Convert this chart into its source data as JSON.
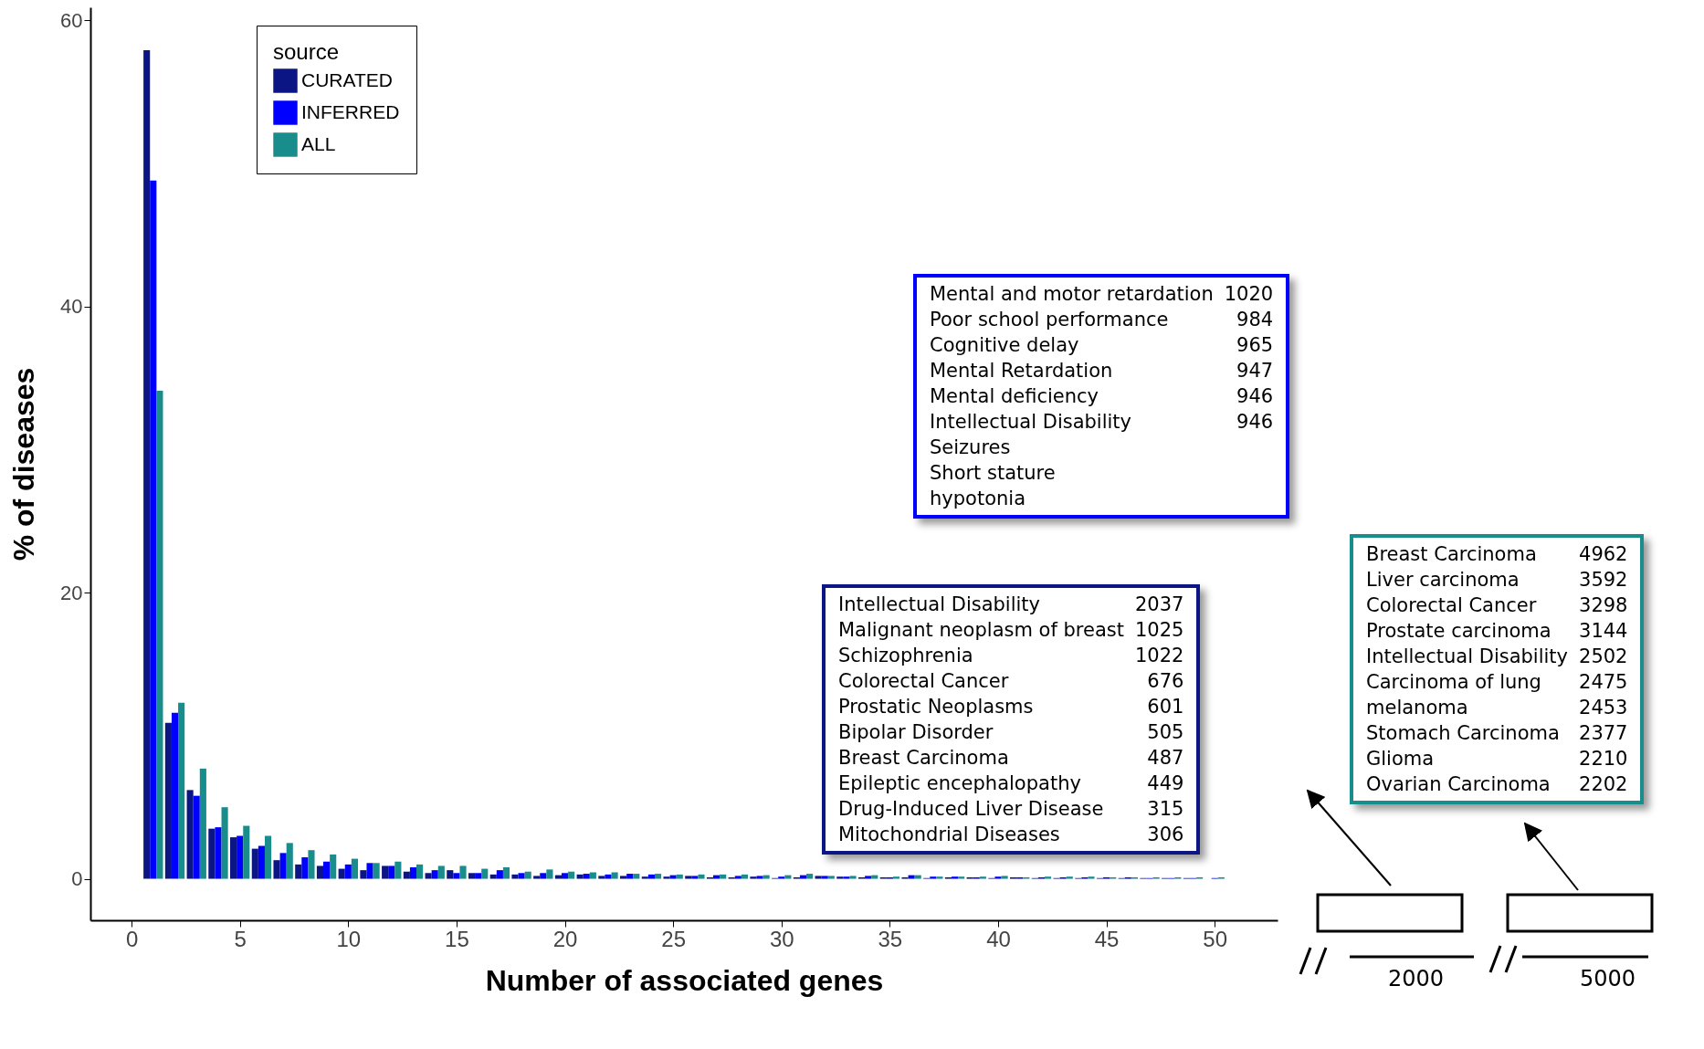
{
  "chart_data": {
    "type": "bar",
    "xlabel": "Number of associated genes",
    "ylabel": "% of diseases",
    "legend_title": "source",
    "legend": "top left",
    "grid": false,
    "x": [
      1,
      2,
      3,
      4,
      5,
      6,
      7,
      8,
      9,
      10,
      11,
      12,
      13,
      14,
      15,
      16,
      17,
      18,
      19,
      20,
      21,
      22,
      23,
      24,
      25,
      26,
      27,
      28,
      29,
      30,
      31,
      32,
      33,
      34,
      35,
      36,
      37,
      38,
      39,
      40,
      41,
      42,
      43,
      44,
      45,
      46,
      47,
      48,
      49,
      50
    ],
    "xlim": [
      -1.9,
      52.9
    ],
    "xticks": [
      0,
      5,
      10,
      15,
      20,
      25,
      30,
      35,
      40,
      45,
      50
    ],
    "ylim": [
      -2.9,
      60.9
    ],
    "yticks": [
      0,
      20,
      40,
      60
    ],
    "series": [
      {
        "name": "CURATED",
        "color": "#0c1584",
        "values": [
          57.9,
          10.9,
          6.2,
          3.5,
          2.9,
          2.1,
          1.3,
          1.0,
          0.9,
          0.7,
          0.6,
          0.9,
          0.5,
          0.4,
          0.6,
          0.4,
          0.3,
          0.3,
          0.2,
          0.25,
          0.3,
          0.2,
          0.2,
          0.15,
          0.15,
          0.2,
          0.1,
          0.1,
          0.15,
          0.05,
          0.1,
          0.2,
          0.15,
          0.1,
          0.1,
          0.1,
          0.05,
          0.1,
          0.1,
          0.05,
          0.1,
          0.05,
          0.05,
          0.05,
          0.05,
          0.05,
          0.05,
          0.05,
          0.05,
          null
        ]
      },
      {
        "name": "INFERRED",
        "color": "#0000ff",
        "values": [
          48.8,
          11.6,
          5.8,
          3.6,
          3.0,
          2.3,
          1.8,
          1.5,
          1.2,
          1.0,
          1.1,
          0.9,
          0.8,
          0.6,
          0.4,
          0.4,
          0.6,
          0.4,
          0.4,
          0.4,
          0.35,
          0.3,
          0.35,
          0.3,
          0.25,
          0.2,
          0.25,
          0.2,
          0.2,
          0.15,
          0.25,
          0.2,
          0.15,
          0.2,
          0.1,
          0.25,
          0.15,
          0.15,
          0.1,
          0.15,
          0.1,
          0.1,
          0.1,
          0.1,
          0.1,
          0.1,
          0.05,
          0.05,
          0.05,
          0.05
        ]
      },
      {
        "name": "ALL",
        "color": "#198c8c",
        "values": [
          34.1,
          12.3,
          7.7,
          5.0,
          3.7,
          3.0,
          2.5,
          2.0,
          1.7,
          1.4,
          1.1,
          1.2,
          1.0,
          0.9,
          0.9,
          0.7,
          0.8,
          0.5,
          0.65,
          0.5,
          0.45,
          0.45,
          0.35,
          0.35,
          0.3,
          0.3,
          0.3,
          0.3,
          0.25,
          0.25,
          0.35,
          0.2,
          0.2,
          0.25,
          0.15,
          0.25,
          0.15,
          0.15,
          0.15,
          0.2,
          0.1,
          0.15,
          0.15,
          0.15,
          0.1,
          0.1,
          0.1,
          0.1,
          0.1,
          0.1
        ]
      }
    ],
    "annotations": [
      "Intellectual Disability\t2037\nMalignant neoplasm of breast\t1025\nSchizophrenia\t1022\nColorectal Cancer\t676\nProstatic Neoplasms\t601\nBipolar Disorder\t505\nBreast Carcinoma\t487\nEpileptic encephalopathy\t449\nDrug-Induced Liver Disease\t315\nMitochondrial Diseases\t306",
      "Mental and motor retardation\t1020\nPoor school performance\t984\nCognitive delay\t965\nMental Retardation\t947\nMental deficiency\t946\nIntellectual Disability\t946\nSeizures\t\nShort stature\t\nhypotonia\t",
      "Breast Carcinoma\t4962\nLiver carcinoma\t3592\nColorectal Cancer\t3298\nProstate carcinoma\t3144\nIntellectual Disability\t2502\nCarcinoma of lung\t2475\nmelanoma\t2453\nStomach Carcinoma\t2377\nGlioma\t2210\nOvarian Carcinoma\t2202",
      "2000",
      "5000"
    ]
  }
}
